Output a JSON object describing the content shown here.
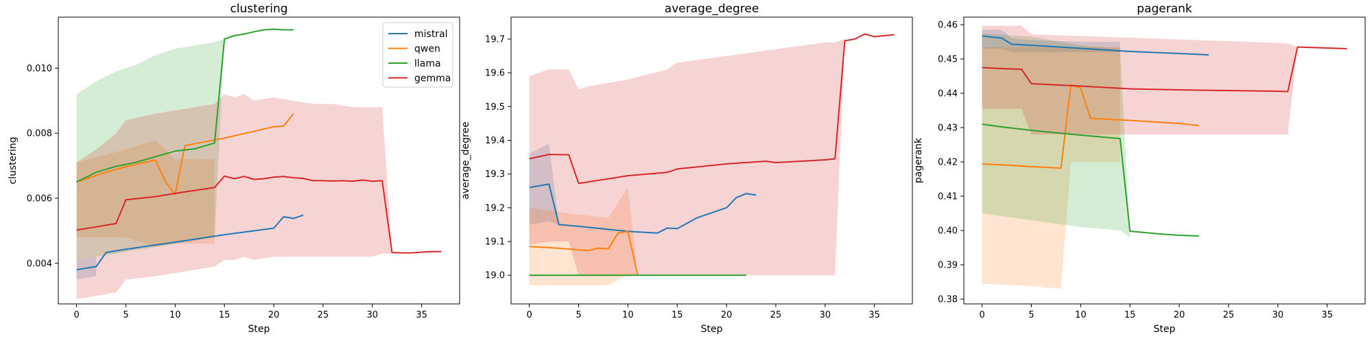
{
  "figure": {
    "colors": {
      "mistral": "#1f77b4",
      "qwen": "#ff7f0e",
      "llama": "#2ca02c",
      "gemma": "#d62728"
    },
    "legend": {
      "placement": "upper-right",
      "panel": 0,
      "entries": [
        "mistral",
        "qwen",
        "llama",
        "gemma"
      ]
    }
  },
  "chart_data": [
    {
      "type": "line",
      "title": "clustering",
      "xlabel": "Step",
      "ylabel": "clustering",
      "xlim": [
        -1.85,
        38.85
      ],
      "ylim": [
        0.00275,
        0.01157
      ],
      "xticks": [
        0,
        5,
        10,
        15,
        20,
        25,
        30,
        35
      ],
      "yticks": [
        0.004,
        0.006,
        0.008,
        0.01
      ],
      "ytick_labels": [
        "0.004",
        "0.006",
        "0.008",
        "0.010"
      ],
      "grid": false,
      "series": [
        {
          "name": "mistral",
          "x": [
            0,
            2,
            3,
            5,
            10,
            15,
            20,
            21,
            22,
            23
          ],
          "y": [
            0.0038,
            0.0039,
            0.00433,
            0.00443,
            0.00465,
            0.00488,
            0.00508,
            0.00543,
            0.00538,
            0.00548
          ],
          "band_x": [
            0,
            2
          ],
          "band_low": [
            0.0035,
            0.0036
          ],
          "band_high": [
            0.0041,
            0.0042
          ]
        },
        {
          "name": "qwen",
          "x": [
            0,
            2,
            3,
            5,
            8,
            9,
            10,
            11,
            15,
            20,
            21,
            22
          ],
          "y": [
            0.0065,
            0.0067,
            0.0068,
            0.00697,
            0.00718,
            0.00652,
            0.00612,
            0.00762,
            0.00785,
            0.0082,
            0.00822,
            0.0086
          ],
          "band_x": [
            0,
            5,
            8,
            10,
            14
          ],
          "band_low": [
            0.0048,
            0.0048,
            0.0045,
            0.0046,
            0.0046
          ],
          "band_high": [
            0.0071,
            0.0075,
            0.0078,
            0.0072,
            0.0072
          ]
        },
        {
          "name": "llama",
          "x": [
            0,
            2,
            4,
            6,
            8,
            10,
            12,
            14,
            15,
            16,
            17,
            18,
            19,
            20,
            21,
            22
          ],
          "y": [
            0.0065,
            0.0068,
            0.00698,
            0.0071,
            0.00728,
            0.00745,
            0.00752,
            0.0077,
            0.0109,
            0.011,
            0.01105,
            0.01112,
            0.01118,
            0.0112,
            0.01118,
            0.01118
          ],
          "band_x": [
            0,
            2,
            4,
            6,
            8,
            10,
            12,
            14,
            15,
            20,
            22
          ],
          "band_low": [
            0.0041,
            0.0042,
            0.0043,
            0.0044,
            0.0045,
            0.0046,
            0.0047,
            0.0048,
            0.0109,
            0.0111,
            0.0112
          ],
          "band_high": [
            0.0092,
            0.0096,
            0.0099,
            0.0101,
            0.0104,
            0.0106,
            0.0107,
            0.0108,
            0.0109,
            0.0111,
            0.0112
          ]
        },
        {
          "name": "gemma",
          "x": [
            0,
            2,
            4,
            5,
            8,
            10,
            14,
            15,
            16,
            17,
            18,
            19,
            20,
            21,
            22,
            23,
            24,
            25,
            26,
            27,
            28,
            29,
            30,
            31,
            32,
            33,
            34,
            35,
            36,
            37
          ],
          "y": [
            0.00502,
            0.00512,
            0.00522,
            0.00595,
            0.00605,
            0.00615,
            0.00633,
            0.00668,
            0.0066,
            0.00667,
            0.00658,
            0.0066,
            0.00665,
            0.00667,
            0.00663,
            0.00661,
            0.00654,
            0.00654,
            0.00653,
            0.00654,
            0.00652,
            0.00656,
            0.00652,
            0.00654,
            0.00433,
            0.00432,
            0.00432,
            0.00434,
            0.00436,
            0.00436
          ],
          "band_x": [
            0,
            2,
            4,
            5,
            8,
            10,
            14,
            15,
            16,
            17,
            18,
            20,
            22,
            24,
            26,
            28,
            30,
            31,
            32,
            37
          ],
          "band_low": [
            0.0029,
            0.003,
            0.0031,
            0.0035,
            0.0036,
            0.0037,
            0.0039,
            0.0041,
            0.0041,
            0.0042,
            0.0041,
            0.0042,
            0.0042,
            0.0042,
            0.0042,
            0.0042,
            0.0042,
            0.0043,
            0.0043,
            0.0043
          ],
          "band_high": [
            0.0071,
            0.0075,
            0.008,
            0.0084,
            0.0086,
            0.0087,
            0.0089,
            0.0092,
            0.0091,
            0.0092,
            0.009,
            0.0091,
            0.009,
            0.0089,
            0.0089,
            0.0088,
            0.0088,
            0.0088,
            0.0043,
            0.0043
          ]
        }
      ]
    },
    {
      "type": "line",
      "title": "average_degree",
      "xlabel": "Step",
      "ylabel": "average_degree",
      "xlim": [
        -1.85,
        38.85
      ],
      "ylim": [
        18.915,
        19.765
      ],
      "xticks": [
        0,
        5,
        10,
        15,
        20,
        25,
        30,
        35
      ],
      "yticks": [
        19.0,
        19.1,
        19.2,
        19.3,
        19.4,
        19.5,
        19.6,
        19.7
      ],
      "ytick_labels": [
        "19.0",
        "19.1",
        "19.2",
        "19.3",
        "19.4",
        "19.5",
        "19.6",
        "19.7"
      ],
      "grid": false,
      "series": [
        {
          "name": "mistral",
          "x": [
            0,
            2,
            3,
            5,
            10,
            13,
            14,
            15,
            17,
            20,
            21,
            22,
            23
          ],
          "y": [
            19.26,
            19.27,
            19.15,
            19.145,
            19.13,
            19.125,
            19.14,
            19.138,
            19.17,
            19.2,
            19.23,
            19.242,
            19.238
          ],
          "band_x": [
            0,
            2,
            3
          ],
          "band_low": [
            19.15,
            19.16,
            19.15
          ],
          "band_high": [
            19.36,
            19.39,
            19.15
          ]
        },
        {
          "name": "qwen",
          "x": [
            0,
            3,
            5,
            6,
            7,
            8,
            9,
            10,
            11
          ],
          "y": [
            19.085,
            19.08,
            19.075,
            19.073,
            19.08,
            19.078,
            19.125,
            19.13,
            19.0
          ],
          "band_x": [
            0,
            5,
            8,
            10,
            11
          ],
          "band_low": [
            18.97,
            18.97,
            18.97,
            19.0,
            19.0
          ],
          "band_high": [
            19.2,
            19.18,
            19.17,
            19.26,
            19.0
          ]
        },
        {
          "name": "llama",
          "x": [
            0,
            5,
            10,
            15,
            20,
            22
          ],
          "y": [
            19.0,
            19.0,
            19.0,
            19.0,
            19.0,
            19.0
          ],
          "band_x": [
            0,
            22
          ],
          "band_low": [
            19.0,
            19.0
          ],
          "band_high": [
            19.0,
            19.0
          ]
        },
        {
          "name": "gemma",
          "x": [
            0,
            2,
            4,
            5,
            10,
            14,
            15,
            20,
            24,
            25,
            30,
            31,
            32,
            33,
            34,
            35,
            36,
            37
          ],
          "y": [
            19.345,
            19.358,
            19.357,
            19.272,
            19.295,
            19.305,
            19.315,
            19.33,
            19.338,
            19.334,
            19.342,
            19.345,
            19.695,
            19.7,
            19.715,
            19.707,
            19.71,
            19.713
          ],
          "band_x": [
            0,
            2,
            4,
            5,
            6,
            10,
            14,
            15,
            20,
            25,
            30,
            31,
            32,
            37
          ],
          "band_low": [
            19.09,
            19.1,
            19.1,
            19.0,
            19.0,
            19.0,
            19.0,
            19.0,
            19.0,
            19.0,
            19.0,
            19.0,
            19.7,
            19.71
          ],
          "band_high": [
            19.59,
            19.61,
            19.61,
            19.55,
            19.56,
            19.58,
            19.61,
            19.63,
            19.65,
            19.67,
            19.69,
            19.69,
            19.7,
            19.71
          ]
        }
      ]
    },
    {
      "type": "line",
      "title": "pagerank",
      "xlabel": "Step",
      "ylabel": "pagerank",
      "xlim": [
        -1.85,
        38.85
      ],
      "ylim": [
        0.3786,
        0.4622
      ],
      "xticks": [
        0,
        5,
        10,
        15,
        20,
        25,
        30,
        35
      ],
      "yticks": [
        0.38,
        0.39,
        0.4,
        0.41,
        0.42,
        0.43,
        0.44,
        0.45,
        0.46
      ],
      "ytick_labels": [
        "0.38",
        "0.39",
        "0.40",
        "0.41",
        "0.42",
        "0.43",
        "0.44",
        "0.45",
        "0.46"
      ],
      "grid": false,
      "series": [
        {
          "name": "mistral",
          "x": [
            0,
            2,
            3,
            5,
            10,
            15,
            20,
            23
          ],
          "y": [
            0.4567,
            0.4561,
            0.4543,
            0.454,
            0.4531,
            0.4522,
            0.4516,
            0.4512
          ],
          "band_x": [
            0,
            2,
            3,
            5,
            10,
            14
          ],
          "band_low": [
            0.453,
            0.453,
            0.452,
            0.452,
            0.452,
            0.452
          ],
          "band_high": [
            0.4585,
            0.4585,
            0.456,
            0.4555,
            0.455,
            0.455
          ]
        },
        {
          "name": "qwen",
          "x": [
            0,
            3,
            5,
            8,
            9,
            10,
            11,
            15,
            20,
            22
          ],
          "y": [
            0.4194,
            0.419,
            0.4186,
            0.4182,
            0.4425,
            0.4415,
            0.4327,
            0.4321,
            0.4312,
            0.4306
          ],
          "band_x": [
            0,
            5,
            8,
            9,
            10,
            14
          ],
          "band_low": [
            0.3845,
            0.3838,
            0.383,
            0.42,
            0.42,
            0.42
          ],
          "band_high": [
            0.4535,
            0.4535,
            0.4535,
            0.4535,
            0.4535,
            0.4535
          ]
        },
        {
          "name": "llama",
          "x": [
            0,
            2,
            5,
            10,
            14,
            15,
            18,
            20,
            22
          ],
          "y": [
            0.431,
            0.4302,
            0.4292,
            0.4278,
            0.4268,
            0.3998,
            0.399,
            0.3986,
            0.3984
          ],
          "band_x": [
            0,
            5,
            10,
            14,
            15,
            22
          ],
          "band_low": [
            0.405,
            0.403,
            0.401,
            0.4,
            0.398,
            0.398
          ],
          "band_high": [
            0.4575,
            0.4565,
            0.454,
            0.453,
            0.398,
            0.398
          ]
        },
        {
          "name": "gemma",
          "x": [
            0,
            2,
            4,
            5,
            10,
            15,
            20,
            25,
            30,
            31,
            32,
            35,
            37
          ],
          "y": [
            0.4475,
            0.4472,
            0.447,
            0.4428,
            0.4421,
            0.4413,
            0.441,
            0.4408,
            0.4406,
            0.4405,
            0.4535,
            0.4532,
            0.453
          ],
          "band_x": [
            0,
            4,
            5,
            10,
            15,
            20,
            25,
            30,
            31,
            32,
            37
          ],
          "band_low": [
            0.4355,
            0.4355,
            0.428,
            0.428,
            0.428,
            0.428,
            0.428,
            0.428,
            0.428,
            0.4535,
            0.453
          ],
          "band_high": [
            0.4597,
            0.4597,
            0.4572,
            0.4567,
            0.4562,
            0.4557,
            0.4552,
            0.4547,
            0.4545,
            0.4535,
            0.453
          ]
        }
      ]
    }
  ]
}
